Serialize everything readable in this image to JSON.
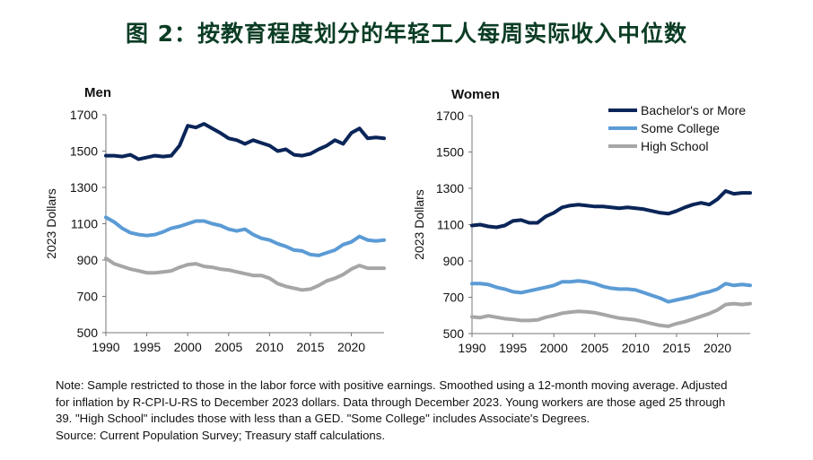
{
  "title": "图 2：按教育程度划分的年轻工人每周实际收入中位数",
  "note_lines": [
    "Note: Sample restricted to those in the labor force with positive earnings. Smoothed using a 12-month moving average. Adjusted",
    "for inflation by R-CPI-U-RS to December 2023 dollars. Data through December 2023. Young workers are those aged 25 through",
    "39. \"High School\" includes those with less than a GED. \"Some College\" includes Associate's Degrees.",
    "Source: Current Population Survey; Treasury staff calculations."
  ],
  "colors": {
    "bachelors": "#0a2558",
    "some_college": "#5b9bd5",
    "high_school": "#a6a6a6"
  },
  "chart_data": [
    {
      "type": "line",
      "panel": "left",
      "title": "Men",
      "xlabel": "",
      "ylabel": "2023 Dollars",
      "xlim": [
        1990,
        2024
      ],
      "ylim": [
        500,
        1700
      ],
      "x_ticks": [
        1990,
        1995,
        2000,
        2005,
        2010,
        2015,
        2020
      ],
      "y_ticks": [
        500,
        700,
        900,
        1100,
        1300,
        1500,
        1700
      ],
      "legend": false,
      "series": [
        {
          "name": "Bachelor's or More",
          "color_key": "bachelors",
          "x": [
            1990,
            1991,
            1992,
            1993,
            1994,
            1995,
            1996,
            1997,
            1998,
            1999,
            2000,
            2001,
            2002,
            2003,
            2004,
            2005,
            2006,
            2007,
            2008,
            2009,
            2010,
            2011,
            2012,
            2013,
            2014,
            2015,
            2016,
            2017,
            2018,
            2019,
            2020,
            2021,
            2022,
            2023,
            2024
          ],
          "values": [
            1475,
            1475,
            1470,
            1480,
            1455,
            1465,
            1475,
            1470,
            1475,
            1530,
            1640,
            1630,
            1650,
            1625,
            1600,
            1570,
            1560,
            1540,
            1560,
            1545,
            1530,
            1500,
            1510,
            1480,
            1475,
            1485,
            1510,
            1530,
            1560,
            1540,
            1600,
            1625,
            1570,
            1575,
            1570
          ]
        },
        {
          "name": "Some College",
          "color_key": "some_college",
          "x": [
            1990,
            1991,
            1992,
            1993,
            1994,
            1995,
            1996,
            1997,
            1998,
            1999,
            2000,
            2001,
            2002,
            2003,
            2004,
            2005,
            2006,
            2007,
            2008,
            2009,
            2010,
            2011,
            2012,
            2013,
            2014,
            2015,
            2016,
            2017,
            2018,
            2019,
            2020,
            2021,
            2022,
            2023,
            2024
          ],
          "values": [
            1135,
            1110,
            1075,
            1050,
            1040,
            1035,
            1040,
            1055,
            1075,
            1085,
            1100,
            1115,
            1115,
            1100,
            1090,
            1070,
            1060,
            1070,
            1040,
            1020,
            1010,
            990,
            975,
            955,
            950,
            930,
            925,
            940,
            955,
            985,
            1000,
            1030,
            1010,
            1005,
            1010
          ]
        },
        {
          "name": "High School",
          "color_key": "high_school",
          "x": [
            1990,
            1991,
            1992,
            1993,
            1994,
            1995,
            1996,
            1997,
            1998,
            1999,
            2000,
            2001,
            2002,
            2003,
            2004,
            2005,
            2006,
            2007,
            2008,
            2009,
            2010,
            2011,
            2012,
            2013,
            2014,
            2015,
            2016,
            2017,
            2018,
            2019,
            2020,
            2021,
            2022,
            2023,
            2024
          ],
          "values": [
            910,
            880,
            865,
            850,
            840,
            830,
            830,
            835,
            840,
            860,
            875,
            880,
            865,
            860,
            850,
            845,
            835,
            825,
            815,
            815,
            800,
            770,
            755,
            745,
            735,
            740,
            760,
            785,
            800,
            820,
            850,
            870,
            855,
            855,
            855
          ]
        }
      ]
    },
    {
      "type": "line",
      "panel": "right",
      "title": "Women",
      "xlabel": "",
      "ylabel": "2023 Dollars",
      "xlim": [
        1990,
        2024
      ],
      "ylim": [
        500,
        1700
      ],
      "x_ticks": [
        1990,
        1995,
        2000,
        2005,
        2010,
        2015,
        2020
      ],
      "y_ticks": [
        500,
        700,
        900,
        1100,
        1300,
        1500,
        1700
      ],
      "legend": true,
      "legend_position": "top-right",
      "series": [
        {
          "name": "Bachelor's or More",
          "color_key": "bachelors",
          "x": [
            1990,
            1991,
            1992,
            1993,
            1994,
            1995,
            1996,
            1997,
            1998,
            1999,
            2000,
            2001,
            2002,
            2003,
            2004,
            2005,
            2006,
            2007,
            2008,
            2009,
            2010,
            2011,
            2012,
            2013,
            2014,
            2015,
            2016,
            2017,
            2018,
            2019,
            2020,
            2021,
            2022,
            2023,
            2024
          ],
          "values": [
            1095,
            1100,
            1090,
            1085,
            1095,
            1120,
            1125,
            1110,
            1110,
            1145,
            1165,
            1195,
            1205,
            1210,
            1205,
            1200,
            1200,
            1195,
            1190,
            1195,
            1190,
            1185,
            1175,
            1165,
            1160,
            1175,
            1195,
            1210,
            1220,
            1210,
            1240,
            1285,
            1270,
            1275,
            1275
          ]
        },
        {
          "name": "Some College",
          "color_key": "some_college",
          "x": [
            1990,
            1991,
            1992,
            1993,
            1994,
            1995,
            1996,
            1997,
            1998,
            1999,
            2000,
            2001,
            2002,
            2003,
            2004,
            2005,
            2006,
            2007,
            2008,
            2009,
            2010,
            2011,
            2012,
            2013,
            2014,
            2015,
            2016,
            2017,
            2018,
            2019,
            2020,
            2021,
            2022,
            2023,
            2024
          ],
          "values": [
            775,
            775,
            770,
            755,
            745,
            730,
            725,
            735,
            745,
            755,
            765,
            785,
            785,
            790,
            785,
            775,
            760,
            750,
            745,
            745,
            740,
            725,
            710,
            695,
            675,
            685,
            695,
            705,
            720,
            730,
            745,
            775,
            765,
            770,
            765
          ]
        },
        {
          "name": "High School",
          "color_key": "high_school",
          "x": [
            1990,
            1991,
            1992,
            1993,
            1994,
            1995,
            1996,
            1997,
            1998,
            1999,
            2000,
            2001,
            2002,
            2003,
            2004,
            2005,
            2006,
            2007,
            2008,
            2009,
            2010,
            2011,
            2012,
            2013,
            2014,
            2015,
            2016,
            2017,
            2018,
            2019,
            2020,
            2021,
            2022,
            2023,
            2024
          ],
          "values": [
            592,
            588,
            598,
            590,
            582,
            578,
            572,
            572,
            575,
            590,
            600,
            612,
            618,
            622,
            620,
            615,
            605,
            595,
            585,
            580,
            575,
            565,
            555,
            545,
            540,
            555,
            565,
            580,
            595,
            610,
            630,
            660,
            665,
            660,
            665
          ]
        }
      ]
    }
  ]
}
